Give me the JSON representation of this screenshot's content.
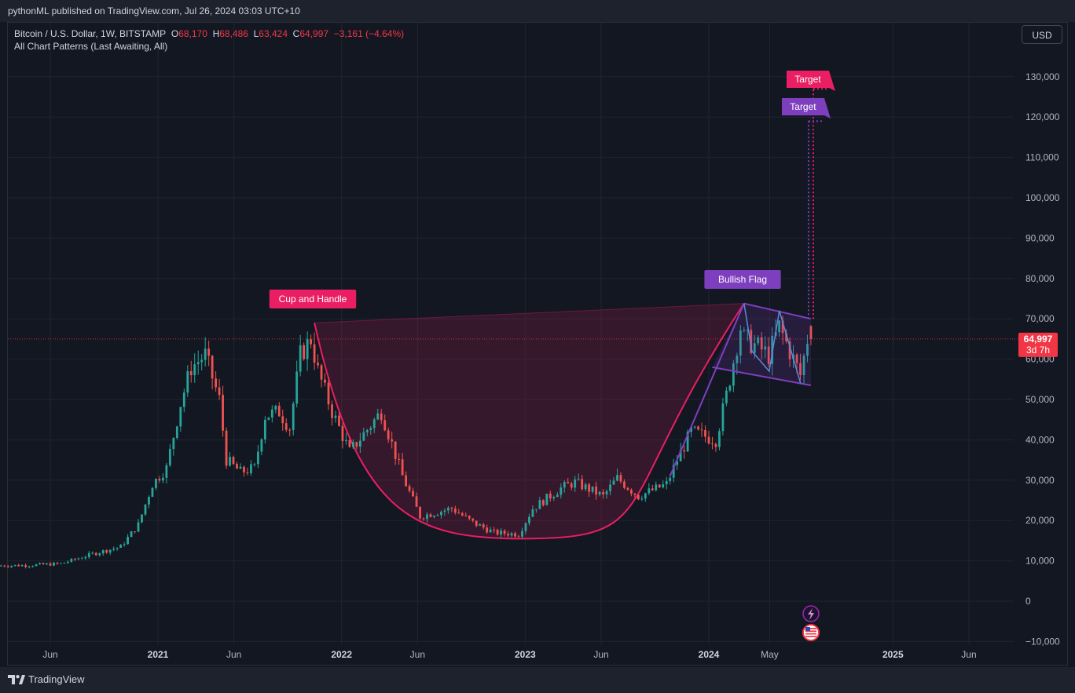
{
  "header": {
    "published": "pythonML published on TradingView.com, Jul 26, 2024 03:03 UTC+10"
  },
  "legend": {
    "symbol": "Bitcoin / U.S. Dollar, 1W, BITSTAMP",
    "o_label": "O",
    "o_value": "68,170",
    "h_label": "H",
    "h_value": "68,486",
    "l_label": "L",
    "l_value": "63,424",
    "c_label": "C",
    "c_value": "64,997",
    "change": "−3,161 (−4.64%)",
    "indicator": "All Chart Patterns (Last Awaiting, All)"
  },
  "currency_button": "USD",
  "price_tag": {
    "value": "64,997",
    "countdown": "3d 7h"
  },
  "footer": {
    "brand": "TradingView"
  },
  "colors": {
    "background": "#131722",
    "up": "#26a69a",
    "down": "#ef5350",
    "cup_pattern": "#e91e63",
    "flag_pattern": "#7e3fbf",
    "price_line": "#f23645"
  },
  "icons": [
    "lightning-icon",
    "us-flag-icon",
    "tradingview-logo-icon"
  ],
  "chart_data": {
    "type": "candlestick",
    "ylim": [
      -10000,
      140000
    ],
    "y_ticks": [
      -10000,
      0,
      10000,
      20000,
      30000,
      40000,
      50000,
      60000,
      70000,
      80000,
      90000,
      100000,
      110000,
      120000,
      130000
    ],
    "y_tick_labels": [
      "−10,000",
      "0",
      "10,000",
      "20,000",
      "30,000",
      "40,000",
      "50,000",
      "60,000",
      "70,000",
      "80,000",
      "90,000",
      "100,000",
      "110,000",
      "120,000",
      "130,000"
    ],
    "x_ticks": [
      {
        "label": "Jun",
        "date": "2020-06-01",
        "year": false
      },
      {
        "label": "2021",
        "date": "2021-01-01",
        "year": true
      },
      {
        "label": "Jun",
        "date": "2021-06-01",
        "year": false
      },
      {
        "label": "2022",
        "date": "2022-01-01",
        "year": true
      },
      {
        "label": "Jun",
        "date": "2022-06-01",
        "year": false
      },
      {
        "label": "2023",
        "date": "2023-01-01",
        "year": true
      },
      {
        "label": "Jun",
        "date": "2023-06-01",
        "year": false
      },
      {
        "label": "2024",
        "date": "2024-01-01",
        "year": true
      },
      {
        "label": "May",
        "date": "2024-05-01",
        "year": false
      },
      {
        "label": "2025",
        "date": "2025-01-01",
        "year": true
      },
      {
        "label": "Jun",
        "date": "2025-06-01",
        "year": false
      }
    ],
    "price_path": [
      [
        "2020-02-24",
        8800
      ],
      [
        "2020-04-27",
        8900
      ],
      [
        "2020-06-29",
        9300
      ],
      [
        "2020-08-31",
        11700
      ],
      [
        "2020-10-26",
        13500
      ],
      [
        "2020-11-30",
        19000
      ],
      [
        "2020-12-28",
        29000
      ],
      [
        "2021-01-25",
        33000
      ],
      [
        "2021-02-22",
        49000
      ],
      [
        "2021-03-15",
        58000
      ],
      [
        "2021-04-12",
        61000
      ],
      [
        "2021-05-10",
        50000
      ],
      [
        "2021-05-24",
        35000
      ],
      [
        "2021-06-21",
        32000
      ],
      [
        "2021-07-19",
        33000
      ],
      [
        "2021-08-09",
        46000
      ],
      [
        "2021-09-06",
        47000
      ],
      [
        "2021-09-27",
        43000
      ],
      [
        "2021-10-18",
        61000
      ],
      [
        "2021-11-08",
        65000
      ],
      [
        "2021-11-22",
        57000
      ],
      [
        "2021-12-20",
        47000
      ],
      [
        "2022-01-24",
        37000
      ],
      [
        "2022-03-28",
        47000
      ],
      [
        "2022-05-09",
        31000
      ],
      [
        "2022-06-13",
        21000
      ],
      [
        "2022-08-15",
        23000
      ],
      [
        "2022-09-26",
        19500
      ],
      [
        "2022-11-07",
        17000
      ],
      [
        "2022-12-26",
        16600
      ],
      [
        "2023-01-23",
        23000
      ],
      [
        "2023-03-20",
        28000
      ],
      [
        "2023-04-17",
        29500
      ],
      [
        "2023-06-12",
        26000
      ],
      [
        "2023-07-10",
        30500
      ],
      [
        "2023-08-21",
        26000
      ],
      [
        "2023-10-16",
        29000
      ],
      [
        "2023-11-06",
        35000
      ],
      [
        "2023-12-04",
        42000
      ],
      [
        "2024-01-22",
        40000
      ],
      [
        "2024-02-12",
        51000
      ],
      [
        "2024-03-11",
        68000
      ],
      [
        "2024-03-18",
        65000
      ],
      [
        "2024-04-15",
        63000
      ],
      [
        "2024-05-06",
        61000
      ],
      [
        "2024-05-27",
        68000
      ],
      [
        "2024-06-24",
        60000
      ],
      [
        "2024-07-08",
        56000
      ],
      [
        "2024-07-22",
        64997
      ]
    ],
    "patterns": [
      {
        "name": "Cup and Handle",
        "color": "#e91e63",
        "rim_start": [
          "2021-11-08",
          69000
        ],
        "bottom": [
          "2022-12-26",
          15500
        ],
        "rim_end": [
          "2024-03-11",
          73800
        ],
        "target": [
          "2024-07-22",
          127000
        ],
        "target_label": "Target"
      },
      {
        "name": "Bullish Flag",
        "color": "#7e3fbf",
        "pole_start": [
          "2023-10-16",
          31000
        ],
        "pole_top": [
          "2024-03-11",
          73800
        ],
        "upper_line": [
          [
            "2024-03-11",
            73800
          ],
          [
            "2024-07-22",
            70000
          ]
        ],
        "lower_line": [
          [
            "2024-01-08",
            58000
          ],
          [
            "2024-07-22",
            53500
          ]
        ],
        "target": [
          "2024-07-22",
          119000
        ],
        "target_label": "Target"
      }
    ],
    "last": {
      "date": "2024-07-22",
      "open": 68170,
      "high": 68486,
      "low": 63424,
      "close": 64997
    },
    "interval": "1W",
    "grid": true,
    "legend_position": "top-left"
  }
}
